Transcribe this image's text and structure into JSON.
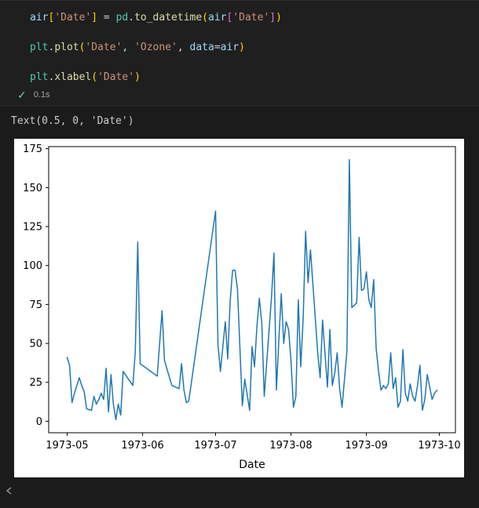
{
  "cell": {
    "code_lines": [
      [
        [
          "air",
          "var"
        ],
        [
          "[",
          "b1"
        ],
        [
          "'Date'",
          "str"
        ],
        [
          "]",
          "b1"
        ],
        [
          " = ",
          "p"
        ],
        [
          "pd",
          "mod"
        ],
        [
          ".",
          "p"
        ],
        [
          "to_datetime",
          "fn"
        ],
        [
          "(",
          "b1"
        ],
        [
          "air",
          "var"
        ],
        [
          "[",
          "b2"
        ],
        [
          "'Date'",
          "str"
        ],
        [
          "]",
          "b2"
        ],
        [
          ")",
          "b1"
        ]
      ],
      [],
      [
        [
          "plt",
          "mod"
        ],
        [
          ".",
          "p"
        ],
        [
          "plot",
          "fn"
        ],
        [
          "(",
          "b1"
        ],
        [
          "'Date'",
          "str"
        ],
        [
          ", ",
          "p"
        ],
        [
          "'Ozone'",
          "str"
        ],
        [
          ", ",
          "p"
        ],
        [
          "data",
          "var"
        ],
        [
          "=",
          "p"
        ],
        [
          "air",
          "var"
        ],
        [
          ")",
          "b1"
        ]
      ],
      [],
      [
        [
          "plt",
          "mod"
        ],
        [
          ".",
          "p"
        ],
        [
          "xlabel",
          "fn"
        ],
        [
          "(",
          "b1"
        ],
        [
          "'Date'",
          "str"
        ],
        [
          ")",
          "b1"
        ]
      ]
    ],
    "exec": {
      "status": "success",
      "duration": "0.1s",
      "check_glyph": "✓"
    }
  },
  "output": {
    "text": "Text(0.5, 0, 'Date')"
  },
  "chart_data": {
    "type": "line",
    "title": "",
    "xlabel": "Date",
    "ylabel": "",
    "line_color": "#1f77b4",
    "grid": false,
    "legend": null,
    "y_ticks": [
      0,
      25,
      50,
      75,
      100,
      125,
      150,
      175
    ],
    "x_tick_dates": [
      "1973-05-01",
      "1973-06-01",
      "1973-07-01",
      "1973-08-01",
      "1973-09-01",
      "1973-10-01"
    ],
    "x_tick_labels": [
      "1973-05",
      "1973-06",
      "1973-07",
      "1973-08",
      "1973-09",
      "1973-10"
    ],
    "x_dates": [
      "1973-05-01",
      "1973-05-02",
      "1973-05-03",
      "1973-05-04",
      "1973-05-06",
      "1973-05-07",
      "1973-05-08",
      "1973-05-09",
      "1973-05-11",
      "1973-05-12",
      "1973-05-13",
      "1973-05-14",
      "1973-05-15",
      "1973-05-16",
      "1973-05-17",
      "1973-05-18",
      "1973-05-19",
      "1973-05-20",
      "1973-05-21",
      "1973-05-22",
      "1973-05-23",
      "1973-05-24",
      "1973-05-28",
      "1973-05-29",
      "1973-05-30",
      "1973-05-31",
      "1973-06-07",
      "1973-06-09",
      "1973-06-10",
      "1973-06-13",
      "1973-06-16",
      "1973-06-17",
      "1973-06-18",
      "1973-06-19",
      "1973-06-20",
      "1973-07-01",
      "1973-07-02",
      "1973-07-03",
      "1973-07-05",
      "1973-07-06",
      "1973-07-07",
      "1973-07-08",
      "1973-07-09",
      "1973-07-10",
      "1973-07-12",
      "1973-07-13",
      "1973-07-15",
      "1973-07-16",
      "1973-07-17",
      "1973-07-18",
      "1973-07-19",
      "1973-07-20",
      "1973-07-21",
      "1973-07-24",
      "1973-07-25",
      "1973-07-26",
      "1973-07-27",
      "1973-07-28",
      "1973-07-29",
      "1973-07-30",
      "1973-07-31",
      "1973-08-01",
      "1973-08-02",
      "1973-08-03",
      "1973-08-04",
      "1973-08-05",
      "1973-08-06",
      "1973-08-07",
      "1973-08-08",
      "1973-08-09",
      "1973-08-12",
      "1973-08-13",
      "1973-08-14",
      "1973-08-16",
      "1973-08-17",
      "1973-08-18",
      "1973-08-19",
      "1973-08-20",
      "1973-08-21",
      "1973-08-22",
      "1973-08-24",
      "1973-08-25",
      "1973-08-26",
      "1973-08-28",
      "1973-08-29",
      "1973-08-30",
      "1973-08-31",
      "1973-09-01",
      "1973-09-02",
      "1973-09-03",
      "1973-09-04",
      "1973-09-05",
      "1973-09-06",
      "1973-09-07",
      "1973-09-08",
      "1973-09-09",
      "1973-09-10",
      "1973-09-11",
      "1973-09-12",
      "1973-09-13",
      "1973-09-14",
      "1973-09-15",
      "1973-09-16",
      "1973-09-17",
      "1973-09-18",
      "1973-09-19",
      "1973-09-20",
      "1973-09-21",
      "1973-09-22",
      "1973-09-23",
      "1973-09-24",
      "1973-09-25",
      "1973-09-26",
      "1973-09-28",
      "1973-09-29",
      "1973-09-30"
    ],
    "y_values": [
      41,
      36,
      12,
      18,
      28,
      23,
      19,
      8,
      7,
      16,
      11,
      14,
      18,
      14,
      34,
      6,
      30,
      11,
      1,
      11,
      4,
      32,
      23,
      45,
      115,
      37,
      29,
      71,
      39,
      23,
      21,
      37,
      20,
      12,
      13,
      135,
      49,
      32,
      64,
      40,
      77,
      97,
      97,
      85,
      10,
      27,
      7,
      48,
      35,
      61,
      79,
      63,
      16,
      80,
      108,
      20,
      52,
      82,
      50,
      64,
      59,
      39,
      9,
      16,
      78,
      35,
      66,
      122,
      89,
      110,
      44,
      28,
      65,
      22,
      59,
      23,
      31,
      44,
      21,
      9,
      45,
      168,
      73,
      76,
      118,
      84,
      85,
      96,
      78,
      73,
      91,
      47,
      32,
      20,
      23,
      21,
      24,
      44,
      21,
      28,
      9,
      13,
      46,
      18,
      13,
      24,
      16,
      13,
      23,
      36,
      7,
      14,
      30,
      14,
      18,
      20
    ],
    "x_range_days_margin": 0.05,
    "y_range_margin": 0.05
  }
}
